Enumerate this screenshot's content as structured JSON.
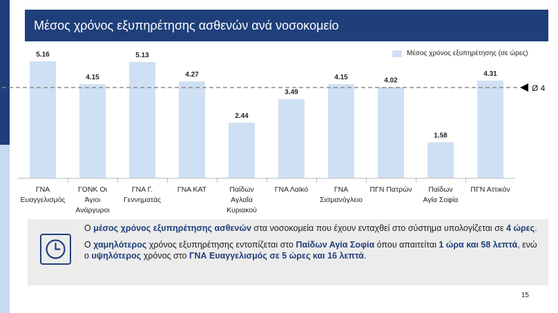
{
  "title": "Μέσος χρόνος εξυπηρέτησης ασθενών ανά νοσοκομείο",
  "page_number": "15",
  "legend": "Μέσος χρόνος εξυπηρέτησης (σε ώρες)",
  "average_label": "Ø 4",
  "chart_data": {
    "type": "bar",
    "title": "Μέσος χρόνος εξυπηρέτησης ασθενών ανά νοσοκομείο",
    "series_name": "Μέσος χρόνος εξυπηρέτησης (σε ώρες)",
    "categories": [
      [
        "ΓΝΑ",
        "Ευαγγελισμός"
      ],
      [
        "ΓΟΝΚ Οι",
        "Άγιοι",
        "Ανάργυροι"
      ],
      [
        "ΓΝΑ Γ.",
        "Γεννηματάς"
      ],
      [
        "ΓΝΑ ΚΑΤ"
      ],
      [
        "Παίδων",
        "Αγλαΐα",
        "Κυριακού"
      ],
      [
        "ΓΝΑ Λαϊκό"
      ],
      [
        "ΓΝΑ",
        "Σισμανόγλειο"
      ],
      [
        "ΠΓΝ Πατρών"
      ],
      [
        "Παίδων",
        "Αγία Σοφία"
      ],
      [
        "ΠΓΝ Αττικόν"
      ]
    ],
    "values": [
      5.16,
      4.15,
      5.13,
      4.27,
      2.44,
      3.49,
      4.15,
      4.02,
      1.58,
      4.31
    ],
    "value_labels": [
      "5.16",
      "4.15",
      "5.13",
      "4.27",
      "2.44",
      "3.49",
      "4.15",
      "4.02",
      "1.58",
      "4.31"
    ],
    "average": 4,
    "ylim": [
      0,
      5.16
    ],
    "xlabel": "",
    "ylabel": "",
    "grid": false,
    "legend_position": "top-right",
    "bar_color": "#cfe0f4",
    "average_line_color": "#8a8a8a"
  },
  "callout": {
    "icon": "clock-icon",
    "p1": [
      {
        "t": "Ο ",
        "b": false
      },
      {
        "t": "μέσος χρόνος εξυπηρέτησης ασθενών",
        "b": true
      },
      {
        "t": " στα νοσοκομεία που έχουν ενταχθεί στο σύστημα υπολογίζεται σε ",
        "b": false
      },
      {
        "t": "4 ώρες",
        "b": true
      },
      {
        "t": ".",
        "b": false
      }
    ],
    "p2": [
      {
        "t": "Ο ",
        "b": false
      },
      {
        "t": "χαμηλότερος",
        "b": true
      },
      {
        "t": " χρόνος εξυπηρέτησης εντοπίζεται στο ",
        "b": false
      },
      {
        "t": "Παίδων Αγία Σοφία",
        "b": true
      },
      {
        "t": " όπου απαιτείται ",
        "b": false
      },
      {
        "t": "1 ώρα και 58 λεπτά",
        "b": true
      },
      {
        "t": ", ενώ ο ",
        "b": false
      },
      {
        "t": "υψηλότερος",
        "b": true
      },
      {
        "t": " χρόνος στο ",
        "b": false
      },
      {
        "t": "ΓΝΑ Ευαγγελισμός σε 5 ώρες και 16 λεπτά",
        "b": true
      },
      {
        "t": ".",
        "b": false
      }
    ]
  },
  "colors": {
    "brand": "#1f3f7a",
    "bar": "#cfe0f4",
    "light_strip": "#c9d9ef",
    "panel": "#ececec"
  }
}
